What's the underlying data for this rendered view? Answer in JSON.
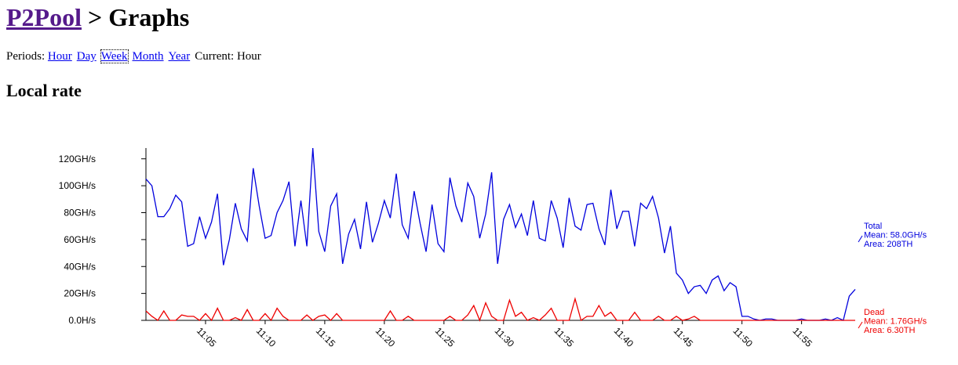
{
  "header": {
    "link": "P2Pool",
    "rest": "> Graphs"
  },
  "nav": {
    "label": "Periods:",
    "links": [
      "Hour",
      "Day",
      "Week",
      "Month",
      "Year"
    ],
    "current": "Current: Hour"
  },
  "section_title": "Local rate",
  "chart_data": {
    "type": "line",
    "categories": [
      null,
      null,
      null,
      null,
      null,
      null,
      null,
      null,
      null,
      null,
      "11:05",
      null,
      null,
      null,
      null,
      null,
      null,
      null,
      null,
      null,
      "11:10",
      null,
      null,
      null,
      null,
      null,
      null,
      null,
      null,
      null,
      "11:15",
      null,
      null,
      null,
      null,
      null,
      null,
      null,
      null,
      null,
      "11:20",
      null,
      null,
      null,
      null,
      null,
      null,
      null,
      null,
      null,
      "11:25",
      null,
      null,
      null,
      null,
      null,
      null,
      null,
      null,
      null,
      "11:30",
      null,
      null,
      null,
      null,
      null,
      null,
      null,
      null,
      null,
      "11:35",
      null,
      null,
      null,
      null,
      null,
      null,
      null,
      null,
      null,
      "11:40",
      null,
      null,
      null,
      null,
      null,
      null,
      null,
      null,
      null,
      "11:45",
      null,
      null,
      null,
      null,
      null,
      null,
      null,
      null,
      null,
      "11:50",
      null,
      null,
      null,
      null,
      null,
      null,
      null,
      null,
      null,
      "11:55",
      null,
      null,
      null,
      null,
      null,
      null,
      null,
      null,
      null
    ],
    "ylim": [
      0,
      128
    ],
    "yticks": [
      {
        "value": 0,
        "label": "0.0H/s"
      },
      {
        "value": 20,
        "label": "20GH/s"
      },
      {
        "value": 40,
        "label": "40GH/s"
      },
      {
        "value": 60,
        "label": "60GH/s"
      },
      {
        "value": 80,
        "label": "80GH/s"
      },
      {
        "value": 100,
        "label": "100GH/s"
      },
      {
        "value": 120,
        "label": "120GH/s"
      }
    ],
    "series": [
      {
        "name": "Total",
        "mean_label": "Mean: 58.0GH/s",
        "area_label": "Area: 208TH",
        "color": "#0000dd",
        "values": [
          105,
          100,
          77,
          77,
          83,
          93,
          88,
          55,
          57,
          77,
          61,
          73,
          94,
          41,
          60,
          87,
          68,
          59,
          113,
          85,
          61,
          63,
          80,
          89,
          103,
          55,
          89,
          55,
          128,
          66,
          51,
          85,
          94,
          42,
          64,
          75,
          53,
          88,
          58,
          72,
          89,
          76,
          109,
          71,
          61,
          96,
          72,
          51,
          86,
          57,
          51,
          106,
          85,
          73,
          102,
          92,
          61,
          79,
          110,
          42,
          75,
          86,
          69,
          79,
          63,
          89,
          61,
          59,
          89,
          76,
          54,
          91,
          70,
          67,
          86,
          87,
          68,
          56,
          97,
          68,
          81,
          81,
          55,
          87,
          83,
          92,
          76,
          50,
          70,
          35,
          30,
          20,
          25,
          26,
          20,
          30,
          33,
          22,
          28,
          25,
          3,
          3,
          1,
          0,
          1,
          1,
          0,
          0,
          0,
          0,
          1,
          0,
          0,
          0,
          1,
          0,
          2,
          0,
          18,
          23
        ]
      },
      {
        "name": "Dead",
        "mean_label": "Mean: 1.76GH/s",
        "area_label": "Area: 6.30TH",
        "color": "#ee0000",
        "values": [
          7,
          3,
          0,
          7,
          0,
          0,
          4,
          3,
          3,
          0,
          5,
          0,
          9,
          0,
          0,
          2,
          0,
          8,
          0,
          0,
          5,
          0,
          9,
          3,
          0,
          0,
          0,
          4,
          0,
          3,
          4,
          0,
          5,
          0,
          0,
          0,
          0,
          0,
          0,
          0,
          0,
          7,
          0,
          0,
          3,
          0,
          0,
          0,
          0,
          0,
          0,
          3,
          0,
          0,
          4,
          11,
          0,
          13,
          3,
          0,
          0,
          15,
          3,
          6,
          0,
          2,
          0,
          4,
          9,
          0,
          0,
          0,
          16,
          0,
          3,
          3,
          11,
          3,
          6,
          0,
          0,
          0,
          6,
          0,
          0,
          0,
          3,
          0,
          0,
          3,
          0,
          1,
          3,
          0,
          0,
          0,
          0,
          0,
          0,
          0,
          0,
          0,
          0,
          0,
          0,
          0,
          0,
          0,
          0,
          0,
          0,
          0,
          0,
          0,
          0,
          0,
          0,
          0,
          0,
          0
        ]
      }
    ]
  }
}
